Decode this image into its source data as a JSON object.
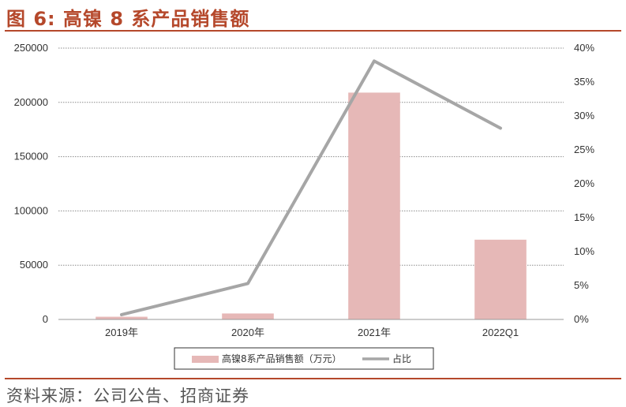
{
  "header": {
    "title": "图 6:  高镍 8 系产品销售额"
  },
  "footer": {
    "source": "资料来源：公司公告、招商证券"
  },
  "chart_data": {
    "type": "bar",
    "categories": [
      "2019年",
      "2020年",
      "2021年",
      "2022Q1"
    ],
    "series": [
      {
        "name": "高镍8系产品销售额（万元）",
        "type": "bar",
        "axis": "left",
        "values": [
          2500,
          5500,
          209000,
          73500
        ],
        "color": "#e6b8b7"
      },
      {
        "name": "占比",
        "type": "line",
        "axis": "right",
        "values": [
          0.7,
          5.3,
          38.1,
          28.2
        ],
        "color": "#a6a6a6"
      }
    ],
    "left_axis": {
      "ylim": [
        0,
        250000
      ],
      "ticks": [
        "0",
        "50000",
        "100000",
        "150000",
        "200000",
        "250000"
      ]
    },
    "right_axis": {
      "ylim": [
        0,
        40
      ],
      "ticks": [
        "0%",
        "5%",
        "10%",
        "15%",
        "20%",
        "25%",
        "30%",
        "35%",
        "40%"
      ]
    },
    "grid": true,
    "legend": "bottom"
  }
}
